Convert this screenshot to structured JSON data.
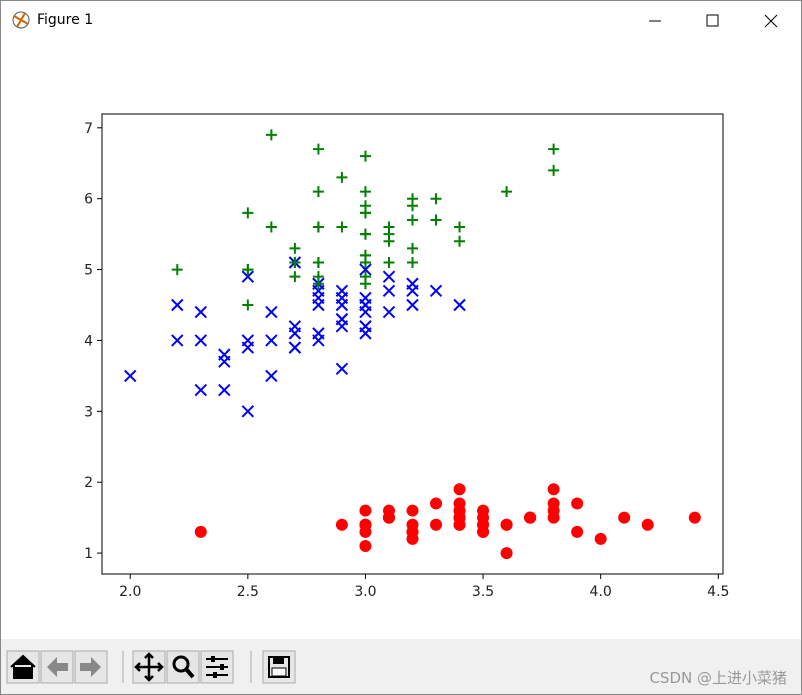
{
  "window": {
    "title": "Figure 1"
  },
  "watermark": "CSDN @上进小菜猪",
  "chart_data": {
    "type": "scatter",
    "xlim": [
      1.88,
      4.52
    ],
    "ylim": [
      0.705,
      7.195
    ],
    "xticks": [
      {
        "value": 2,
        "label": "2.0"
      },
      2.5,
      {
        "value": 3,
        "label": "3.0"
      },
      3.5,
      {
        "value": 4,
        "label": "4.0"
      },
      4.5
    ],
    "yticks": [
      1,
      2,
      3,
      4,
      5,
      6,
      7
    ],
    "grid": false,
    "series": [
      {
        "color": "#ff0000",
        "marker": "o",
        "x": [
          3.5,
          3.0,
          3.2,
          3.1,
          3.6,
          3.9,
          3.4,
          3.4,
          2.9,
          3.1,
          3.7,
          3.4,
          3.0,
          3.0,
          4.0,
          4.4,
          3.9,
          3.5,
          3.8,
          3.8,
          3.4,
          3.7,
          3.6,
          3.3,
          3.4,
          3.0,
          3.4,
          3.5,
          3.4,
          3.2,
          3.1,
          3.4,
          4.1,
          4.2,
          3.1,
          3.2,
          3.5,
          3.6,
          3.0,
          3.4,
          3.5,
          2.3,
          3.2,
          3.5,
          3.8,
          3.0,
          3.8,
          3.2,
          3.7,
          3.3
        ],
        "values": [
          1.4,
          1.4,
          1.3,
          1.5,
          1.4,
          1.7,
          1.4,
          1.5,
          1.4,
          1.5,
          1.5,
          1.6,
          1.4,
          1.1,
          1.2,
          1.5,
          1.3,
          1.4,
          1.7,
          1.5,
          1.7,
          1.5,
          1.0,
          1.7,
          1.9,
          1.6,
          1.6,
          1.5,
          1.4,
          1.6,
          1.6,
          1.5,
          1.5,
          1.4,
          1.5,
          1.2,
          1.3,
          1.4,
          1.3,
          1.5,
          1.3,
          1.3,
          1.3,
          1.6,
          1.9,
          1.4,
          1.6,
          1.4,
          1.5,
          1.4
        ]
      },
      {
        "color": "#0000ff",
        "marker": "x",
        "x": [
          3.2,
          3.2,
          3.1,
          2.3,
          2.8,
          2.8,
          3.3,
          2.4,
          2.9,
          2.7,
          2.0,
          3.0,
          2.2,
          2.9,
          2.9,
          3.1,
          3.0,
          2.7,
          2.2,
          2.5,
          3.2,
          2.8,
          2.5,
          2.8,
          2.9,
          3.0,
          2.8,
          3.0,
          2.9,
          2.6,
          2.4,
          2.4,
          2.7,
          2.7,
          3.0,
          3.4,
          3.1,
          2.3,
          3.0,
          2.5,
          2.6,
          3.0,
          2.6,
          2.3,
          2.7,
          3.0,
          2.9,
          2.9,
          2.5,
          2.8
        ],
        "values": [
          4.7,
          4.5,
          4.9,
          4.0,
          4.6,
          4.5,
          4.7,
          3.3,
          4.6,
          3.9,
          3.5,
          4.2,
          4.0,
          4.7,
          3.6,
          4.4,
          4.5,
          4.1,
          4.5,
          3.9,
          4.8,
          4.0,
          4.9,
          4.7,
          4.3,
          4.4,
          4.8,
          5.0,
          4.5,
          3.5,
          3.8,
          3.7,
          3.9,
          5.1,
          4.5,
          4.5,
          4.7,
          4.4,
          4.1,
          4.0,
          4.4,
          4.6,
          4.0,
          3.3,
          4.2,
          4.2,
          4.2,
          4.3,
          3.0,
          4.1
        ]
      },
      {
        "color": "#008000",
        "marker": "+",
        "x": [
          3.3,
          2.7,
          3.0,
          2.9,
          3.0,
          3.0,
          2.5,
          2.9,
          2.5,
          3.6,
          3.2,
          2.7,
          3.0,
          2.5,
          2.8,
          3.2,
          3.0,
          3.8,
          2.6,
          2.2,
          3.2,
          2.8,
          2.8,
          2.7,
          3.3,
          3.2,
          2.8,
          3.0,
          2.8,
          3.0,
          2.8,
          3.8,
          2.8,
          2.8,
          2.6,
          3.0,
          3.4,
          3.1,
          3.0,
          3.1,
          3.1,
          3.1,
          2.7,
          3.2,
          3.3,
          3.0,
          2.5,
          3.0,
          3.4,
          3.0
        ],
        "values": [
          6.0,
          5.1,
          5.9,
          5.6,
          5.8,
          6.6,
          4.5,
          6.3,
          5.8,
          6.1,
          5.1,
          5.3,
          5.5,
          5.0,
          5.1,
          5.3,
          5.5,
          6.7,
          6.9,
          5.0,
          5.7,
          4.9,
          6.7,
          4.9,
          5.7,
          6.0,
          4.8,
          4.9,
          5.6,
          5.8,
          6.1,
          6.4,
          5.6,
          5.1,
          5.6,
          6.1,
          5.6,
          5.5,
          4.8,
          5.4,
          5.6,
          5.1,
          5.1,
          5.9,
          5.7,
          5.2,
          5.0,
          5.2,
          5.4,
          5.1
        ]
      }
    ]
  }
}
